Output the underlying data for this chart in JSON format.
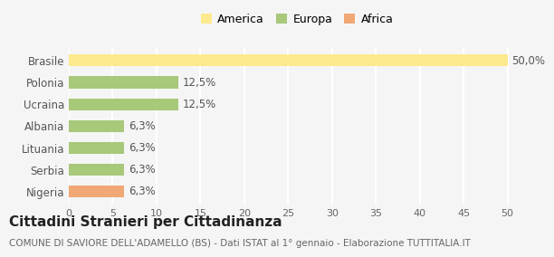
{
  "categories": [
    "Nigeria",
    "Serbia",
    "Lituania",
    "Albania",
    "Ucraina",
    "Polonia",
    "Brasile"
  ],
  "values": [
    6.3,
    6.3,
    6.3,
    6.3,
    12.5,
    12.5,
    50.0
  ],
  "colors": [
    "#f0a875",
    "#a8c87a",
    "#a8c87a",
    "#a8c87a",
    "#a8c87a",
    "#a8c87a",
    "#fde98e"
  ],
  "labels": [
    "6,3%",
    "6,3%",
    "6,3%",
    "6,3%",
    "12,5%",
    "12,5%",
    "50,0%"
  ],
  "legend": [
    {
      "label": "America",
      "color": "#fde98e"
    },
    {
      "label": "Europa",
      "color": "#a8c87a"
    },
    {
      "label": "Africa",
      "color": "#f0a875"
    }
  ],
  "xlim": [
    0,
    52
  ],
  "xticks": [
    0,
    5,
    10,
    15,
    20,
    25,
    30,
    35,
    40,
    45,
    50
  ],
  "title": "Cittadini Stranieri per Cittadinanza",
  "subtitle": "COMUNE DI SAVIORE DELL'ADAMELLO (BS) - Dati ISTAT al 1° gennaio - Elaborazione TUTTITALIA.IT",
  "background_color": "#f5f5f5",
  "grid_color": "#ffffff",
  "bar_height": 0.55,
  "label_fontsize": 8.5,
  "title_fontsize": 11,
  "subtitle_fontsize": 7.5
}
